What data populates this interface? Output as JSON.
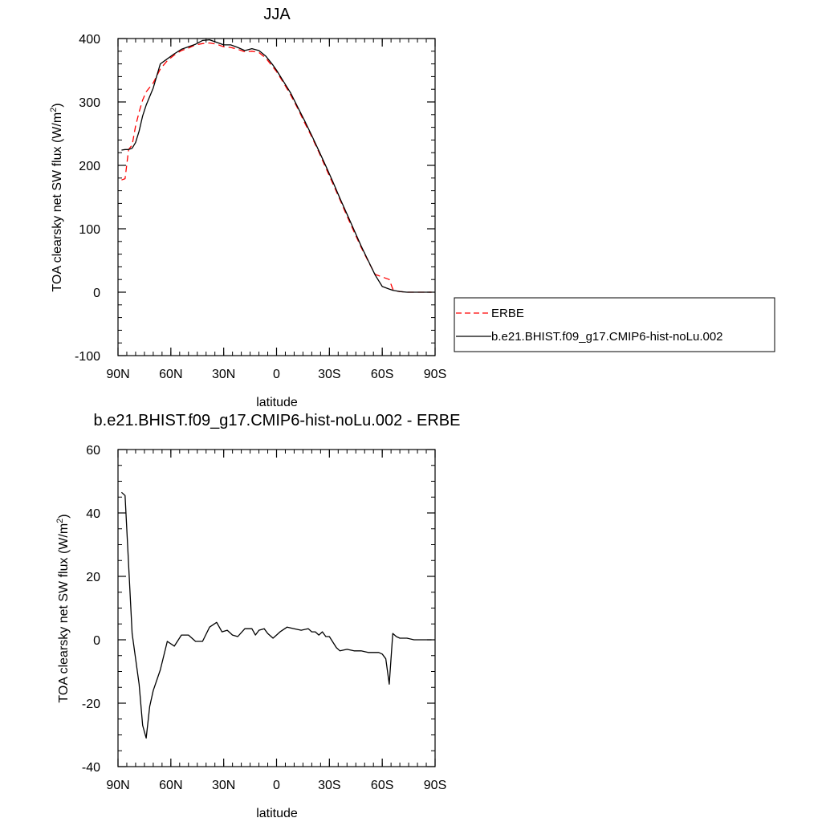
{
  "chart_data": [
    {
      "type": "line",
      "title": "JJA",
      "xlabel": "latitude",
      "ylabel": "TOA clearsky net SW flux (W/m",
      "ylabel_sup": "2",
      "ylabel_close": ")",
      "xlim": [
        90,
        -90
      ],
      "ylim": [
        -100,
        400
      ],
      "xticks": [
        {
          "value": 90,
          "label": "90N"
        },
        {
          "value": 60,
          "label": "60N"
        },
        {
          "value": 30,
          "label": "30N"
        },
        {
          "value": 0,
          "label": "0"
        },
        {
          "value": -30,
          "label": "30S"
        },
        {
          "value": -60,
          "label": "60S"
        },
        {
          "value": -90,
          "label": "90S"
        }
      ],
      "yticks": [
        {
          "value": 400,
          "label": "400"
        },
        {
          "value": 300,
          "label": "300"
        },
        {
          "value": 200,
          "label": "200"
        },
        {
          "value": 100,
          "label": "100"
        },
        {
          "value": 0,
          "label": "0"
        },
        {
          "value": -100,
          "label": "-100"
        }
      ],
      "legend_position": "right",
      "series": [
        {
          "name": "ERBE",
          "color": "#ff0000",
          "dash": "dashed",
          "x": [
            88,
            86,
            84,
            82,
            80,
            78,
            76,
            74,
            70,
            66,
            62,
            58,
            54,
            50,
            46,
            42,
            38,
            34,
            30,
            26,
            22,
            18,
            14,
            10,
            6,
            2,
            0,
            -4,
            -8,
            -12,
            -16,
            -20,
            -24,
            -28,
            -32,
            -36,
            -40,
            -44,
            -48,
            -52,
            -56,
            -60,
            -64,
            -66,
            -68,
            -70,
            -74,
            -78,
            -82,
            -86,
            -88
          ],
          "y": [
            177,
            179,
            225,
            232,
            262,
            284,
            303,
            316,
            330,
            352,
            365,
            374,
            381,
            385,
            390,
            392,
            393,
            391,
            387,
            386,
            383,
            379,
            380,
            378,
            369,
            355,
            348,
            330,
            311,
            290,
            267,
            245,
            221,
            196,
            171,
            146,
            120,
            95,
            71,
            49,
            28,
            24,
            20,
            5,
            2,
            1,
            0,
            0,
            0,
            0,
            0
          ]
        },
        {
          "name": "b.e21.BHIST.f09_g17.CMIP6-hist-noLu.002",
          "color": "#000000",
          "dash": "solid",
          "x": [
            88,
            86,
            84,
            82,
            80,
            78,
            76,
            74,
            70,
            66,
            62,
            58,
            54,
            50,
            46,
            42,
            38,
            34,
            30,
            26,
            22,
            18,
            14,
            10,
            6,
            2,
            0,
            -4,
            -8,
            -12,
            -16,
            -20,
            -24,
            -28,
            -32,
            -36,
            -40,
            -44,
            -48,
            -52,
            -56,
            -60,
            -64,
            -66,
            -68,
            -70,
            -74,
            -78,
            -82,
            -86,
            -88
          ],
          "y": [
            224,
            225,
            225,
            227,
            236,
            254,
            278,
            295,
            322,
            360,
            368,
            376,
            383,
            387,
            391,
            397,
            398,
            394,
            390,
            390,
            386,
            381,
            384,
            381,
            372,
            358,
            350,
            332,
            314,
            292,
            270,
            247,
            223,
            199,
            174,
            148,
            123,
            98,
            73,
            50,
            27,
            9,
            5,
            3,
            2,
            1,
            0,
            0,
            0,
            0,
            0
          ]
        }
      ]
    },
    {
      "type": "line",
      "title": "b.e21.BHIST.f09_g17.CMIP6-hist-noLu.002 - ERBE",
      "xlabel": "latitude",
      "ylabel": "TOA clearsky net SW flux (W/m",
      "ylabel_sup": "2",
      "ylabel_close": ")",
      "xlim": [
        90,
        -90
      ],
      "ylim": [
        -40,
        60
      ],
      "xticks": [
        {
          "value": 90,
          "label": "90N"
        },
        {
          "value": 60,
          "label": "60N"
        },
        {
          "value": 30,
          "label": "30N"
        },
        {
          "value": 0,
          "label": "0"
        },
        {
          "value": -30,
          "label": "30S"
        },
        {
          "value": -60,
          "label": "60S"
        },
        {
          "value": -90,
          "label": "90S"
        }
      ],
      "yticks": [
        {
          "value": 60,
          "label": "60"
        },
        {
          "value": 40,
          "label": "40"
        },
        {
          "value": 20,
          "label": "20"
        },
        {
          "value": 0,
          "label": "0"
        },
        {
          "value": -20,
          "label": "-20"
        },
        {
          "value": -40,
          "label": "-40"
        }
      ],
      "series": [
        {
          "color": "#000000",
          "dash": "solid",
          "x": [
            88,
            86,
            82,
            78,
            76,
            74,
            72,
            70,
            66,
            62,
            58,
            54,
            50,
            46,
            42,
            38,
            34,
            31,
            28,
            25,
            22,
            18,
            14,
            12,
            10,
            7,
            5,
            2,
            0,
            -2,
            -6,
            -10,
            -14,
            -18,
            -20,
            -22,
            -24,
            -26,
            -28,
            -30,
            -34,
            -36,
            -40,
            -44,
            -48,
            -52,
            -55,
            -58,
            -60,
            -62,
            -64,
            -66,
            -68,
            -70,
            -74,
            -78,
            -82,
            -86,
            -88
          ],
          "y": [
            46.5,
            45.5,
            2,
            -14,
            -27,
            -31,
            -21,
            -16,
            -9.5,
            -0.5,
            -2,
            1.5,
            1.5,
            -0.5,
            -0.5,
            4,
            5.5,
            2.5,
            3,
            1.5,
            1,
            3.5,
            3.5,
            1.5,
            3,
            3.5,
            2,
            0.5,
            1.5,
            2.5,
            4,
            3.5,
            3,
            3.5,
            2.5,
            2.5,
            1.5,
            2.5,
            1,
            1,
            -2.5,
            -3.5,
            -3,
            -3.5,
            -3.5,
            -4,
            -4,
            -4,
            -4.5,
            -6,
            -14,
            2,
            1,
            0.5,
            0.5,
            0,
            0,
            0,
            0
          ]
        }
      ]
    }
  ]
}
